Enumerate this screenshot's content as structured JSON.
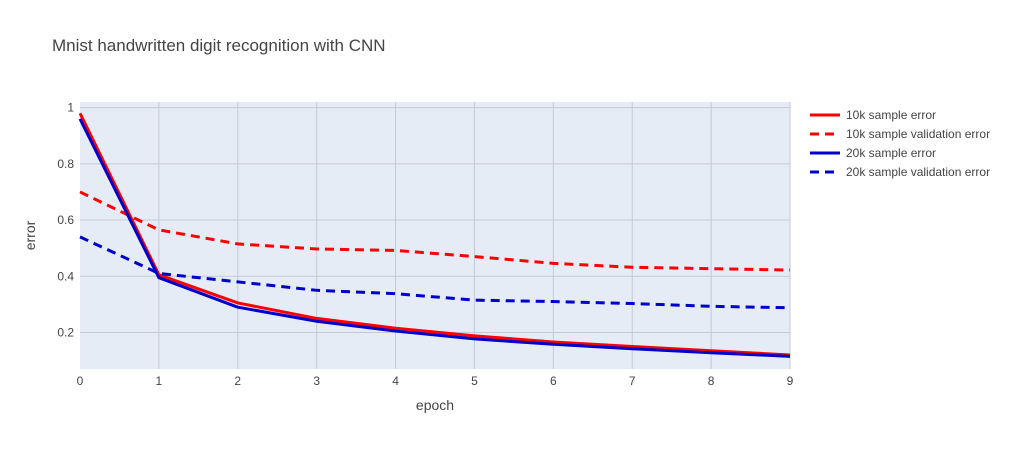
{
  "chart_data": {
    "type": "line",
    "title": "Mnist handwritten digit recognition with CNN",
    "xlabel": "epoch",
    "ylabel": "error",
    "x": [
      0,
      1,
      2,
      3,
      4,
      5,
      6,
      7,
      8,
      9
    ],
    "xlim": [
      0,
      9
    ],
    "ylim": [
      0.07,
      1.02
    ],
    "xticks": [
      "0",
      "1",
      "2",
      "3",
      "4",
      "5",
      "6",
      "7",
      "8",
      "9"
    ],
    "yticks": [
      {
        "value": 0.2,
        "label": "0.2"
      },
      {
        "value": 0.4,
        "label": "0.4"
      },
      {
        "value": 0.6,
        "label": "0.6"
      },
      {
        "value": 0.8,
        "label": "0.8"
      },
      {
        "value": 1.0,
        "label": "1"
      }
    ],
    "grid": true,
    "legend_position": "right",
    "background": "#e5ecf6",
    "series": [
      {
        "name": "10k sample error",
        "color": "#ff0000",
        "dash": "solid",
        "values": [
          0.98,
          0.405,
          0.305,
          0.25,
          0.215,
          0.188,
          0.166,
          0.15,
          0.135,
          0.12
        ]
      },
      {
        "name": "10k sample validation error",
        "color": "#ff0000",
        "dash": "dash",
        "values": [
          0.7,
          0.565,
          0.515,
          0.497,
          0.492,
          0.47,
          0.446,
          0.432,
          0.427,
          0.422
        ]
      },
      {
        "name": "20k sample error",
        "color": "#0000cc",
        "dash": "solid",
        "values": [
          0.96,
          0.395,
          0.29,
          0.24,
          0.205,
          0.177,
          0.158,
          0.142,
          0.128,
          0.115
        ]
      },
      {
        "name": "20k sample validation error",
        "color": "#0000cc",
        "dash": "dash",
        "values": [
          0.54,
          0.41,
          0.38,
          0.35,
          0.338,
          0.315,
          0.31,
          0.303,
          0.293,
          0.288
        ]
      }
    ]
  }
}
